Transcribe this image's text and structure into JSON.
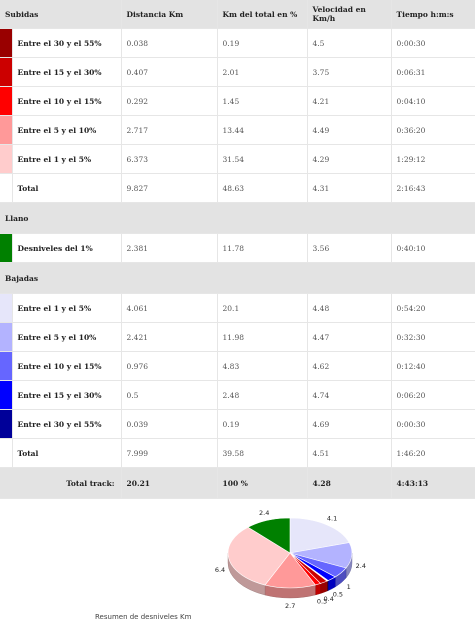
{
  "header": {
    "col1": "Subidas",
    "col2": "Distancia Km",
    "col3": "Km del total en %",
    "col4": "Velocidad en Km/h",
    "col5": "Tiempo h:m:s"
  },
  "subidas": [
    {
      "label": "Entre el 30 y el 55%",
      "color": "#990000",
      "dist": "0.038",
      "pct": "0.19",
      "vel": "4.5",
      "time": "0:00:30"
    },
    {
      "label": "Entre el 15 y el 30%",
      "color": "#cc0000",
      "dist": "0.407",
      "pct": "2.01",
      "vel": "3.75",
      "time": "0:06:31"
    },
    {
      "label": "Entre el 10 y el 15%",
      "color": "#ff0000",
      "dist": "0.292",
      "pct": "1.45",
      "vel": "4.21",
      "time": "0:04:10"
    },
    {
      "label": "Entre el 5 y el 10%",
      "color": "#ff9999",
      "dist": "2.717",
      "pct": "13.44",
      "vel": "4.49",
      "time": "0:36:20"
    },
    {
      "label": "Entre el 1 y el 5%",
      "color": "#ffcccc",
      "dist": "6.373",
      "pct": "31.54",
      "vel": "4.29",
      "time": "1:29:12"
    }
  ],
  "subidas_total": {
    "label": "Total",
    "dist": "9.827",
    "pct": "48.63",
    "vel": "4.31",
    "time": "2:16:43"
  },
  "llano_title": "Llano",
  "llano": [
    {
      "label": "Desniveles del 1%",
      "color": "#008000",
      "dist": "2.381",
      "pct": "11.78",
      "vel": "3.56",
      "time": "0:40:10"
    }
  ],
  "bajadas_title": "Bajadas",
  "bajadas": [
    {
      "label": "Entre el 1 y el 5%",
      "color": "#e6e6fa",
      "dist": "4.061",
      "pct": "20.1",
      "vel": "4.48",
      "time": "0:54:20"
    },
    {
      "label": "Entre el 5 y el 10%",
      "color": "#b3b3ff",
      "dist": "2.421",
      "pct": "11.98",
      "vel": "4.47",
      "time": "0:32:30"
    },
    {
      "label": "Entre el 10 y el 15%",
      "color": "#6666ff",
      "dist": "0.976",
      "pct": "4.83",
      "vel": "4.62",
      "time": "0:12:40"
    },
    {
      "label": "Entre el 15 y el 30%",
      "color": "#0000ff",
      "dist": "0.5",
      "pct": "2.48",
      "vel": "4.74",
      "time": "0:06:20"
    },
    {
      "label": "Entre el 30 y el 55%",
      "color": "#000099",
      "dist": "0.039",
      "pct": "0.19",
      "vel": "4.69",
      "time": "0:00:30"
    }
  ],
  "bajadas_total": {
    "label": "Total",
    "dist": "7.999",
    "pct": "39.58",
    "vel": "4.51",
    "time": "1:46:20"
  },
  "track_total": {
    "label": "Total track:",
    "dist": "20.21",
    "pct": "100 %",
    "vel": "4.28",
    "time": "4:43:13"
  },
  "chart_data": {
    "type": "pie",
    "title": "",
    "caption": "Resumen de desniveles Km",
    "slices": [
      {
        "value": 4.1,
        "label": "4.1",
        "color": "#e6e6fa"
      },
      {
        "value": 2.4,
        "label": "2.4",
        "color": "#b3b3ff"
      },
      {
        "value": 1.0,
        "label": "1",
        "color": "#6666ff"
      },
      {
        "value": 0.5,
        "label": "0.5",
        "color": "#0000ff"
      },
      {
        "value": 0.04,
        "label": "",
        "color": "#000099"
      },
      {
        "value": 0.04,
        "label": "",
        "color": "#990000"
      },
      {
        "value": 0.4,
        "label": "0.4",
        "color": "#cc0000"
      },
      {
        "value": 0.3,
        "label": "0.3",
        "color": "#ff0000"
      },
      {
        "value": 2.7,
        "label": "2.7",
        "color": "#ff9999"
      },
      {
        "value": 6.4,
        "label": "6.4",
        "color": "#ffcccc"
      },
      {
        "value": 2.4,
        "label": "2.4",
        "color": "#008000"
      }
    ]
  }
}
